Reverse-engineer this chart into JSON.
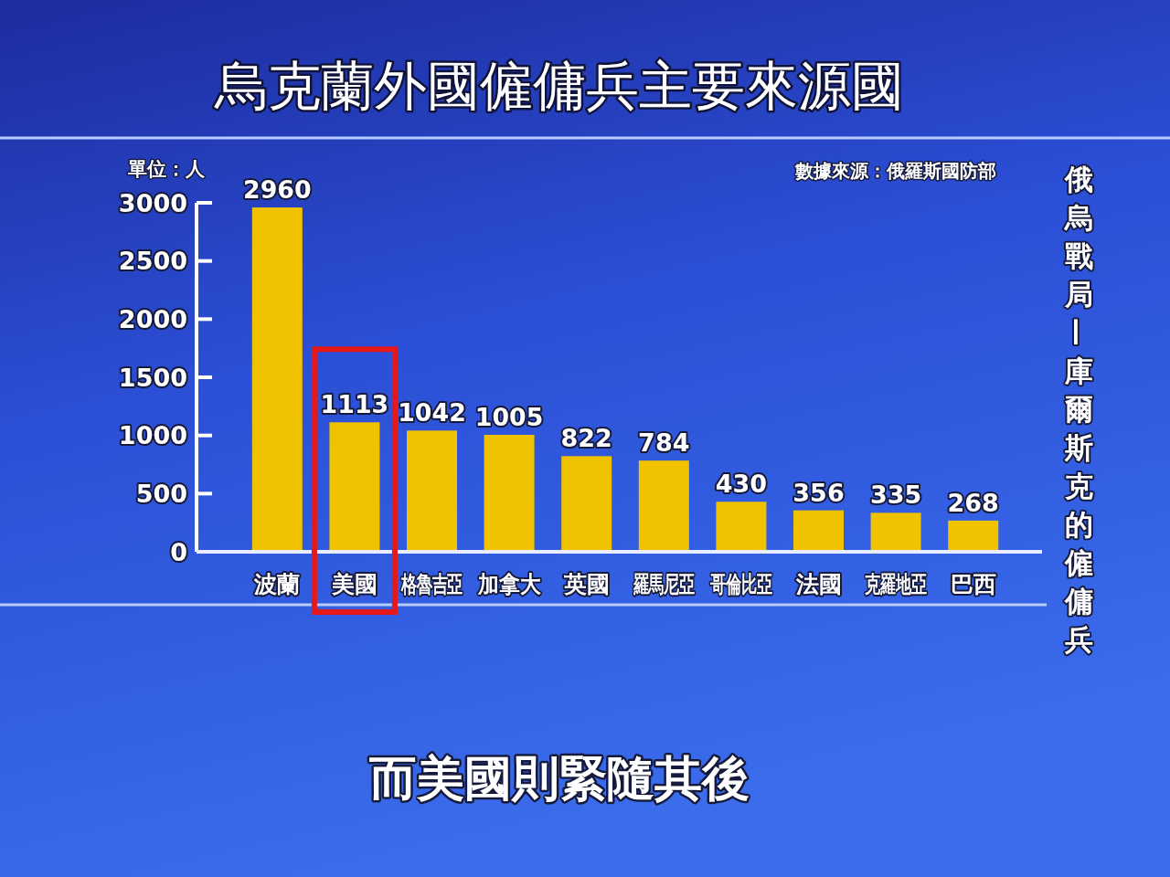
{
  "chart_data": {
    "type": "bar",
    "title": "烏克蘭外國僱傭兵主要來源國",
    "ylabel": "單位：人",
    "categories": [
      "波蘭",
      "美國",
      "格魯吉亞",
      "加拿大",
      "英國",
      "羅馬尼亞",
      "哥倫比亞",
      "法國",
      "克羅地亞",
      "巴西"
    ],
    "values": [
      2960,
      1113,
      1042,
      1005,
      822,
      784,
      430,
      356,
      335,
      268
    ],
    "color": "#f0c200",
    "ylim": [
      0,
      3000
    ],
    "yticks": [
      0,
      500,
      1000,
      1500,
      2000,
      2500,
      3000
    ],
    "data_labels": true,
    "annotations": [
      "數據來源：俄羅斯國防部",
      "俄烏戰局—庫爾斯克的僱傭兵",
      "而美國則緊隨其後"
    ]
  }
}
